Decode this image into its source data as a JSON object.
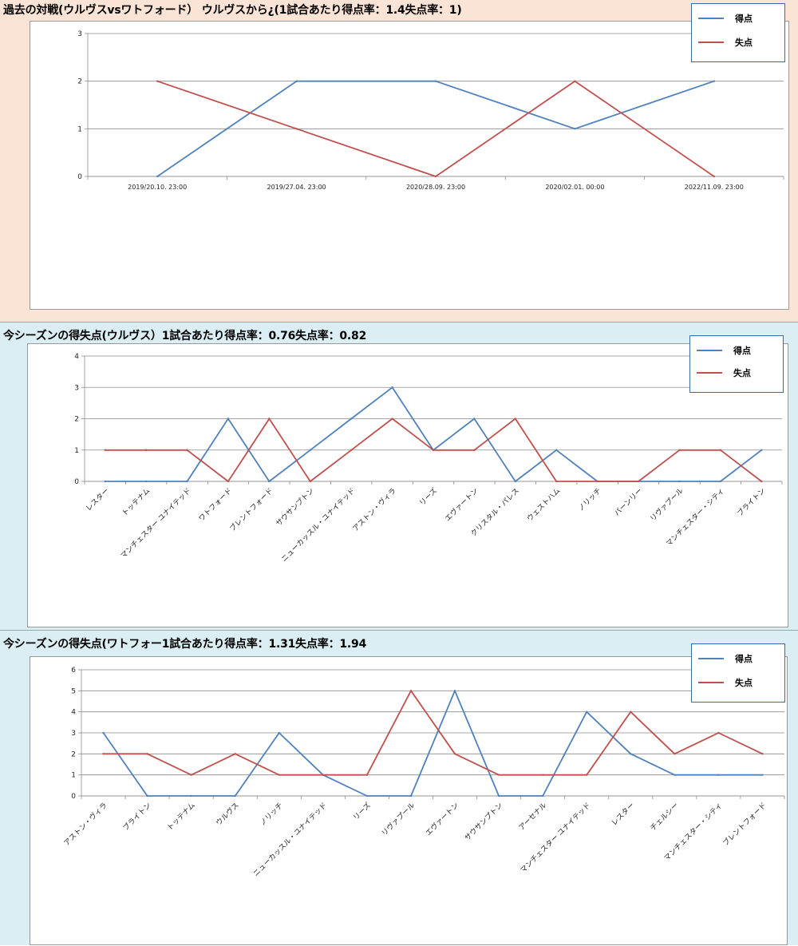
{
  "colors": {
    "goals": "#4f81bd",
    "conceded": "#c0504d",
    "grid": "#8c8c8c"
  },
  "legend": {
    "goals": "得点",
    "conceded": "失点"
  },
  "chart_data": [
    {
      "type": "line",
      "title": "過去の対戦(ウルヴスvsワトフォード）  ウルヴスから¿(1試合あたり得点率：1.4失点率：1)",
      "categories": [
        "2019/20.10. 23:00",
        "2019/27.04. 23:00",
        "2020/28.09. 23:00",
        "2020/02.01. 00:00",
        "2022/11.09. 23:00"
      ],
      "ylim": [
        0,
        3
      ],
      "yticks": [
        "0",
        "1",
        "2",
        "3"
      ],
      "grid": true,
      "legend_position": "top-right",
      "series": [
        {
          "name": "得点",
          "values": [
            0,
            2,
            2,
            1,
            2
          ]
        },
        {
          "name": "失点",
          "values": [
            2,
            1,
            0,
            2,
            0
          ]
        }
      ]
    },
    {
      "type": "line",
      "title": "今シーズンの得失点(ウルヴス）1試合あたり得点率：0.76失点率：0.82",
      "categories": [
        "レスター",
        "トッテナム",
        "マンチェスター ユナイテッド",
        "ワトフォード",
        "ブレントフォード",
        "サウサンプトン",
        "ニューカッスル・ユナイテッド",
        "アストン・ヴィラ",
        "リーズ",
        "エヴァートン",
        "クリスタル・パレス",
        "ウェストハム",
        "ノリッチ",
        "バーンリー",
        "リヴァプール",
        "マンチェスター・シティ",
        "ブライトン"
      ],
      "ylim": [
        0,
        4
      ],
      "yticks": [
        "0",
        "1",
        "2",
        "3",
        "4"
      ],
      "grid": true,
      "legend_position": "top-right",
      "series": [
        {
          "name": "得点",
          "values": [
            0,
            0,
            0,
            2,
            0,
            1,
            2,
            3,
            1,
            2,
            0,
            1,
            0,
            0,
            0,
            0,
            1
          ]
        },
        {
          "name": "失点",
          "values": [
            1,
            1,
            1,
            0,
            2,
            0,
            1,
            2,
            1,
            1,
            2,
            0,
            0,
            0,
            1,
            1,
            0
          ]
        }
      ]
    },
    {
      "type": "line",
      "title": "今シーズンの得失点(ワトフォー1試合あたり得点率：1.31失点率：1.94",
      "categories": [
        "アストン・ヴィラ",
        "ブライトン",
        "トッテナム",
        "ウルヴス",
        "ノリッチ",
        "ニューカッスル・ユナイテッド",
        "リーズ",
        "リヴァプール",
        "エヴァートン",
        "サウサンプトン",
        "アーセナル",
        "マンチェスター ユナイテッド",
        "レスター",
        "チェルシー",
        "マンチェスター・シティ",
        "ブレントフォード"
      ],
      "ylim": [
        0,
        6
      ],
      "yticks": [
        "0",
        "1",
        "2",
        "3",
        "4",
        "5",
        "6"
      ],
      "grid": true,
      "legend_position": "top-right",
      "series": [
        {
          "name": "得点",
          "values": [
            3,
            0,
            0,
            0,
            3,
            1,
            0,
            0,
            5,
            0,
            0,
            4,
            2,
            1,
            1,
            1
          ]
        },
        {
          "name": "失点",
          "values": [
            2,
            2,
            1,
            2,
            1,
            1,
            1,
            5,
            2,
            1,
            1,
            1,
            4,
            2,
            3,
            2
          ]
        }
      ]
    }
  ]
}
